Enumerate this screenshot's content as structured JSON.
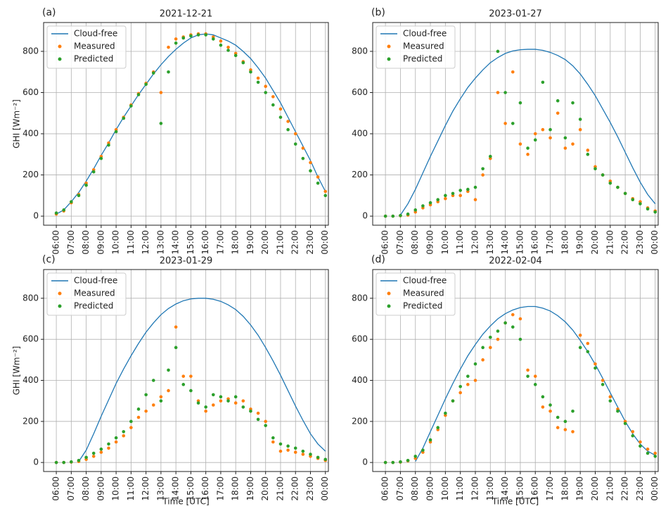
{
  "chart_data": [
    {
      "type": "scatter",
      "panel": "(a)",
      "title": "2021-12-21",
      "ylabel": "GHI [Wm⁻²]",
      "legend": "upper left",
      "grid": true,
      "x": [
        6,
        6.5,
        7,
        7.5,
        8,
        8.5,
        9,
        9.5,
        10,
        10.5,
        11,
        11.5,
        12,
        12.5,
        13,
        13.5,
        14,
        14.5,
        15,
        15.5,
        16,
        16.5,
        17,
        17.5,
        18,
        18.5,
        19,
        19.5,
        20,
        20.5,
        21,
        21.5,
        22,
        22.5,
        23,
        23.5,
        24
      ],
      "xlim": [
        5.15,
        24.2
      ],
      "ylim": [
        -44,
        940
      ],
      "xticks": [
        {
          "value": 6,
          "label": "06:00"
        },
        {
          "value": 7,
          "label": "07:00"
        },
        {
          "value": 8,
          "label": "08:00"
        },
        {
          "value": 9,
          "label": "09:00"
        },
        {
          "value": 10,
          "label": "10:00"
        },
        {
          "value": 11,
          "label": "11:00"
        },
        {
          "value": 12,
          "label": "12:00"
        },
        {
          "value": 13,
          "label": "13:00"
        },
        {
          "value": 14,
          "label": "14:00"
        },
        {
          "value": 15,
          "label": "15:00"
        },
        {
          "value": 16,
          "label": "16:00"
        },
        {
          "value": 17,
          "label": "17:00"
        },
        {
          "value": 18,
          "label": "18:00"
        },
        {
          "value": 19,
          "label": "19:00"
        },
        {
          "value": 20,
          "label": "20:00"
        },
        {
          "value": 21,
          "label": "21:00"
        },
        {
          "value": 22,
          "label": "22:00"
        },
        {
          "value": 23,
          "label": "23:00"
        },
        {
          "value": 24,
          "label": "00:00"
        }
      ],
      "yticks": [
        0,
        200,
        400,
        600,
        800
      ],
      "series": [
        {
          "name": "Cloud-free",
          "mode": "line",
          "color": "#1f77b4",
          "values": [
            10,
            30,
            70,
            115,
            170,
            230,
            295,
            355,
            420,
            480,
            535,
            590,
            640,
            690,
            735,
            775,
            810,
            840,
            865,
            880,
            885,
            880,
            865,
            850,
            830,
            800,
            765,
            720,
            670,
            610,
            550,
            480,
            410,
            340,
            270,
            190,
            120
          ]
        },
        {
          "name": "Measured",
          "mode": "markers",
          "color": "#ff7f0e",
          "values": [
            10,
            25,
            65,
            105,
            160,
            225,
            290,
            355,
            420,
            480,
            540,
            595,
            645,
            700,
            600,
            820,
            860,
            870,
            880,
            885,
            885,
            870,
            850,
            820,
            790,
            750,
            710,
            670,
            630,
            580,
            520,
            460,
            400,
            330,
            260,
            190,
            120
          ]
        },
        {
          "name": "Predicted",
          "mode": "markers",
          "color": "#2ca02c",
          "values": [
            15,
            30,
            70,
            100,
            150,
            215,
            280,
            345,
            410,
            475,
            535,
            590,
            640,
            695,
            450,
            700,
            840,
            865,
            875,
            880,
            880,
            860,
            830,
            805,
            780,
            745,
            700,
            650,
            600,
            540,
            480,
            420,
            350,
            280,
            220,
            160,
            100
          ]
        }
      ]
    },
    {
      "type": "scatter",
      "panel": "(b)",
      "title": "2023-01-27",
      "legend": "upper left",
      "grid": true,
      "x": [
        6,
        6.5,
        7,
        7.5,
        8,
        8.5,
        9,
        9.5,
        10,
        10.5,
        11,
        11.5,
        12,
        12.5,
        13,
        13.5,
        14,
        14.5,
        15,
        15.5,
        16,
        16.5,
        17,
        17.5,
        18,
        18.5,
        19,
        19.5,
        20,
        20.5,
        21,
        21.5,
        22,
        22.5,
        23,
        23.5,
        24
      ],
      "xlim": [
        5.15,
        24.2
      ],
      "ylim": [
        -44,
        940
      ],
      "xticks": [
        {
          "value": 6,
          "label": "06:00"
        },
        {
          "value": 7,
          "label": "07:00"
        },
        {
          "value": 8,
          "label": "08:00"
        },
        {
          "value": 9,
          "label": "09:00"
        },
        {
          "value": 10,
          "label": "10:00"
        },
        {
          "value": 11,
          "label": "11:00"
        },
        {
          "value": 12,
          "label": "12:00"
        },
        {
          "value": 13,
          "label": "13:00"
        },
        {
          "value": 14,
          "label": "14:00"
        },
        {
          "value": 15,
          "label": "15:00"
        },
        {
          "value": 16,
          "label": "16:00"
        },
        {
          "value": 17,
          "label": "17:00"
        },
        {
          "value": 18,
          "label": "18:00"
        },
        {
          "value": 19,
          "label": "19:00"
        },
        {
          "value": 20,
          "label": "20:00"
        },
        {
          "value": 21,
          "label": "21:00"
        },
        {
          "value": 22,
          "label": "22:00"
        },
        {
          "value": 23,
          "label": "23:00"
        },
        {
          "value": 24,
          "label": "00:00"
        }
      ],
      "yticks": [
        0,
        200,
        400,
        600,
        800
      ],
      "series": [
        {
          "name": "Cloud-free",
          "mode": "line",
          "color": "#1f77b4",
          "values": [
            null,
            null,
            5,
            60,
            130,
            210,
            290,
            365,
            440,
            510,
            570,
            625,
            670,
            710,
            745,
            770,
            790,
            802,
            808,
            810,
            810,
            805,
            795,
            780,
            760,
            730,
            690,
            640,
            585,
            520,
            455,
            385,
            310,
            235,
            165,
            105,
            60
          ]
        },
        {
          "name": "Measured",
          "mode": "markers",
          "color": "#ff7f0e",
          "values": [
            0,
            0,
            2,
            5,
            20,
            40,
            55,
            70,
            85,
            100,
            100,
            120,
            80,
            200,
            280,
            600,
            450,
            700,
            350,
            300,
            400,
            420,
            380,
            500,
            330,
            350,
            420,
            320,
            240,
            200,
            170,
            140,
            110,
            85,
            70,
            40,
            25
          ]
        },
        {
          "name": "Predicted",
          "mode": "markers",
          "color": "#2ca02c",
          "values": [
            0,
            0,
            3,
            10,
            30,
            50,
            65,
            80,
            100,
            110,
            125,
            130,
            140,
            230,
            290,
            800,
            600,
            450,
            550,
            330,
            370,
            650,
            420,
            560,
            380,
            550,
            470,
            300,
            230,
            200,
            160,
            140,
            110,
            80,
            60,
            35,
            20
          ]
        }
      ]
    },
    {
      "type": "scatter",
      "panel": "(c)",
      "title": "2023-01-29",
      "ylabel": "GHI [Wm⁻²]",
      "xlabel": "Time [UTC]",
      "legend": "upper left",
      "grid": true,
      "x": [
        6,
        6.5,
        7,
        7.5,
        8,
        8.5,
        9,
        9.5,
        10,
        10.5,
        11,
        11.5,
        12,
        12.5,
        13,
        13.5,
        14,
        14.5,
        15,
        15.5,
        16,
        16.5,
        17,
        17.5,
        18,
        18.5,
        19,
        19.5,
        20,
        20.5,
        21,
        21.5,
        22,
        22.5,
        23,
        23.5,
        24
      ],
      "xlim": [
        5.15,
        24.2
      ],
      "ylim": [
        -44,
        940
      ],
      "xticks": [
        {
          "value": 6,
          "label": "06:00"
        },
        {
          "value": 7,
          "label": "07:00"
        },
        {
          "value": 8,
          "label": "08:00"
        },
        {
          "value": 9,
          "label": "09:00"
        },
        {
          "value": 10,
          "label": "10:00"
        },
        {
          "value": 11,
          "label": "11:00"
        },
        {
          "value": 12,
          "label": "12:00"
        },
        {
          "value": 13,
          "label": "13:00"
        },
        {
          "value": 14,
          "label": "14:00"
        },
        {
          "value": 15,
          "label": "15:00"
        },
        {
          "value": 16,
          "label": "16:00"
        },
        {
          "value": 17,
          "label": "17:00"
        },
        {
          "value": 18,
          "label": "18:00"
        },
        {
          "value": 19,
          "label": "19:00"
        },
        {
          "value": 20,
          "label": "20:00"
        },
        {
          "value": 21,
          "label": "21:00"
        },
        {
          "value": 22,
          "label": "22:00"
        },
        {
          "value": 23,
          "label": "23:00"
        },
        {
          "value": 24,
          "label": "00:00"
        }
      ],
      "yticks": [
        0,
        200,
        400,
        600,
        800
      ],
      "series": [
        {
          "name": "Cloud-free",
          "mode": "line",
          "color": "#1f77b4",
          "values": [
            null,
            null,
            null,
            5,
            60,
            140,
            225,
            305,
            385,
            455,
            520,
            580,
            635,
            680,
            720,
            750,
            772,
            788,
            797,
            800,
            800,
            795,
            785,
            768,
            745,
            712,
            670,
            620,
            560,
            495,
            425,
            350,
            275,
            205,
            140,
            90,
            55
          ]
        },
        {
          "name": "Measured",
          "mode": "markers",
          "color": "#ff7f0e",
          "values": [
            0,
            0,
            2,
            5,
            15,
            30,
            50,
            70,
            100,
            130,
            170,
            220,
            250,
            280,
            320,
            350,
            660,
            420,
            420,
            300,
            250,
            280,
            300,
            310,
            290,
            300,
            260,
            240,
            200,
            100,
            55,
            60,
            50,
            40,
            30,
            20,
            10
          ]
        },
        {
          "name": "Predicted",
          "mode": "markers",
          "color": "#2ca02c",
          "values": [
            0,
            0,
            3,
            10,
            25,
            45,
            65,
            90,
            120,
            150,
            200,
            260,
            330,
            400,
            300,
            450,
            560,
            380,
            350,
            290,
            270,
            330,
            320,
            300,
            320,
            270,
            250,
            210,
            180,
            120,
            90,
            80,
            70,
            55,
            40,
            25,
            15
          ]
        }
      ]
    },
    {
      "type": "scatter",
      "panel": "(d)",
      "title": "2022-02-04",
      "xlabel": "Time [UTC]",
      "legend": "upper left",
      "grid": true,
      "x": [
        6,
        6.5,
        7,
        7.5,
        8,
        8.5,
        9,
        9.5,
        10,
        10.5,
        11,
        11.5,
        12,
        12.5,
        13,
        13.5,
        14,
        14.5,
        15,
        15.5,
        16,
        16.5,
        17,
        17.5,
        18,
        18.5,
        19,
        19.5,
        20,
        20.5,
        21,
        21.5,
        22,
        22.5,
        23,
        23.5,
        24
      ],
      "xlim": [
        5.15,
        24.2
      ],
      "ylim": [
        -44,
        940
      ],
      "xticks": [
        {
          "value": 6,
          "label": "06:00"
        },
        {
          "value": 7,
          "label": "07:00"
        },
        {
          "value": 8,
          "label": "08:00"
        },
        {
          "value": 9,
          "label": "09:00"
        },
        {
          "value": 10,
          "label": "10:00"
        },
        {
          "value": 11,
          "label": "11:00"
        },
        {
          "value": 12,
          "label": "12:00"
        },
        {
          "value": 13,
          "label": "13:00"
        },
        {
          "value": 14,
          "label": "14:00"
        },
        {
          "value": 15,
          "label": "15:00"
        },
        {
          "value": 16,
          "label": "16:00"
        },
        {
          "value": 17,
          "label": "17:00"
        },
        {
          "value": 18,
          "label": "18:00"
        },
        {
          "value": 19,
          "label": "19:00"
        },
        {
          "value": 20,
          "label": "20:00"
        },
        {
          "value": 21,
          "label": "21:00"
        },
        {
          "value": 22,
          "label": "22:00"
        },
        {
          "value": 23,
          "label": "23:00"
        },
        {
          "value": 24,
          "label": "00:00"
        }
      ],
      "yticks": [
        0,
        200,
        400,
        600,
        800
      ],
      "series": [
        {
          "name": "Cloud-free",
          "mode": "line",
          "color": "#1f77b4",
          "values": [
            null,
            null,
            null,
            null,
            5,
            70,
            150,
            230,
            310,
            385,
            455,
            520,
            575,
            625,
            665,
            700,
            725,
            743,
            755,
            760,
            760,
            752,
            738,
            715,
            685,
            645,
            595,
            540,
            478,
            410,
            340,
            270,
            200,
            140,
            90,
            55,
            35
          ]
        },
        {
          "name": "Measured",
          "mode": "markers",
          "color": "#ff7f0e",
          "values": [
            0,
            0,
            2,
            8,
            20,
            50,
            100,
            160,
            230,
            300,
            340,
            380,
            400,
            500,
            560,
            600,
            680,
            720,
            700,
            450,
            420,
            270,
            250,
            170,
            160,
            150,
            620,
            580,
            480,
            400,
            320,
            260,
            200,
            150,
            100,
            65,
            45
          ]
        },
        {
          "name": "Predicted",
          "mode": "markers",
          "color": "#2ca02c",
          "values": [
            0,
            0,
            3,
            10,
            30,
            60,
            110,
            170,
            240,
            300,
            370,
            420,
            480,
            560,
            610,
            640,
            680,
            660,
            600,
            420,
            380,
            320,
            280,
            220,
            200,
            250,
            560,
            540,
            460,
            380,
            300,
            250,
            190,
            130,
            80,
            45,
            30
          ]
        }
      ]
    }
  ]
}
